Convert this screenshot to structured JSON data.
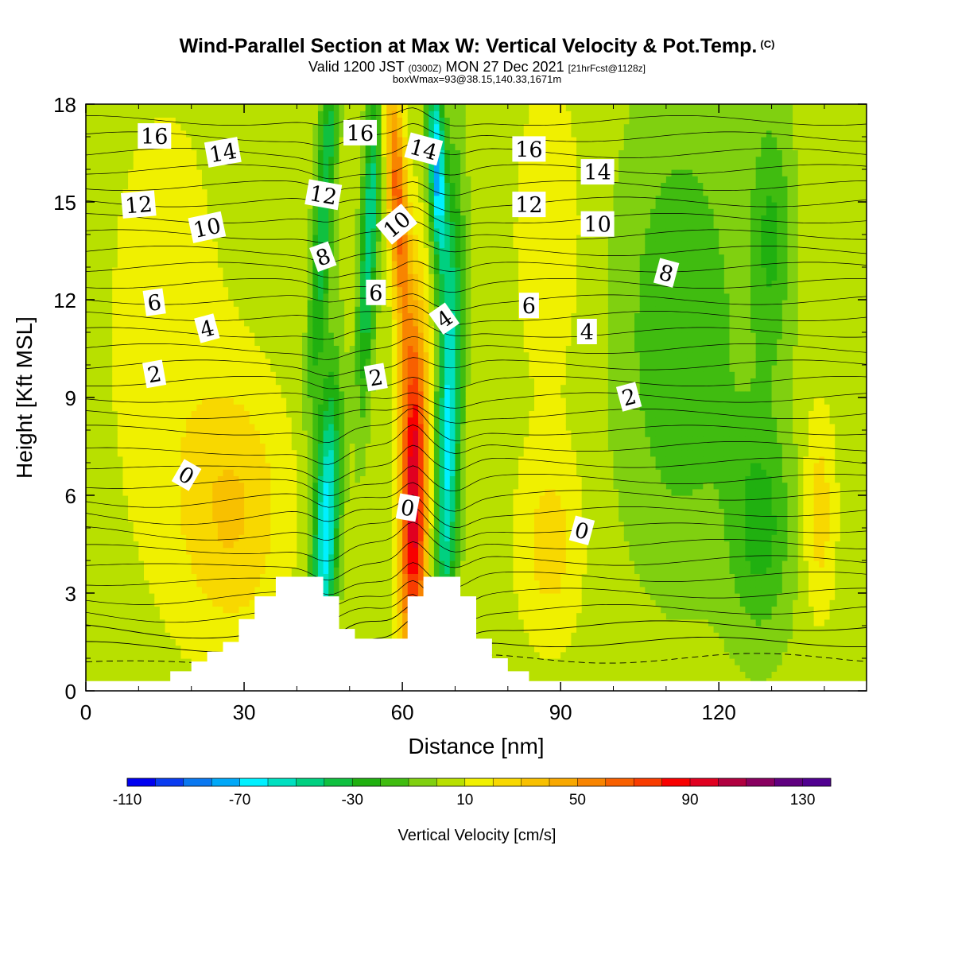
{
  "header": {
    "title": "Wind-Parallel Section at Max W: Vertical Velocity & Pot.Temp.",
    "title_mark": "(C)",
    "valid_prefix": "Valid 1200 JST",
    "valid_utc": "(0300Z)",
    "valid_date": "MON 27 Dec 2021",
    "forecast": "[21hrFcst@1128z]",
    "box_info": "boxWmax=93@38.15,140.33,1671m"
  },
  "chart_data": {
    "type": "heatmap",
    "xlabel": "Distance [nm]",
    "ylabel": "Height [Kft MSL]",
    "xlim": [
      0,
      148
    ],
    "ylim": [
      0,
      18
    ],
    "x_ticks": [
      "0",
      "30",
      "60",
      "90",
      "120"
    ],
    "x_tick_values": [
      0,
      30,
      60,
      90,
      120
    ],
    "y_ticks": [
      "0",
      "3",
      "6",
      "9",
      "12",
      "15",
      "18"
    ],
    "y_tick_values": [
      0,
      3,
      6,
      9,
      12,
      15,
      18
    ],
    "colorbar": {
      "title": "Vertical Velocity [cm/s]",
      "min": -110,
      "max": 140,
      "step": 10,
      "tick_labels": [
        "-110",
        "-70",
        "-30",
        "10",
        "50",
        "90",
        "130"
      ],
      "tick_values": [
        -110,
        -70,
        -30,
        10,
        50,
        90,
        130
      ],
      "colors": [
        "#0000f0",
        "#0a3cf0",
        "#0a78f0",
        "#00a8f8",
        "#00f0ff",
        "#00e0c0",
        "#00d080",
        "#10c040",
        "#20b010",
        "#40bc10",
        "#80d010",
        "#b8e000",
        "#f0f000",
        "#f8d800",
        "#f8c000",
        "#f8a800",
        "#f88400",
        "#f86000",
        "#f83c00",
        "#f80000",
        "#e00020",
        "#b00040",
        "#880060",
        "#600080",
        "#500090"
      ]
    },
    "terrain_profile": [
      [
        0,
        0.3
      ],
      [
        16,
        0.3
      ],
      [
        16,
        0.6
      ],
      [
        20,
        0.6
      ],
      [
        20,
        0.9
      ],
      [
        23,
        0.9
      ],
      [
        23,
        1.2
      ],
      [
        26,
        1.2
      ],
      [
        26,
        1.5
      ],
      [
        29,
        1.5
      ],
      [
        29,
        2.2
      ],
      [
        32,
        2.2
      ],
      [
        32,
        2.9
      ],
      [
        36,
        2.9
      ],
      [
        36,
        3.5
      ],
      [
        45,
        3.5
      ],
      [
        45,
        2.9
      ],
      [
        48,
        2.9
      ],
      [
        48,
        1.9
      ],
      [
        51,
        1.9
      ],
      [
        51,
        1.6
      ],
      [
        61,
        1.6
      ],
      [
        61,
        2.9
      ],
      [
        64,
        2.9
      ],
      [
        64,
        3.5
      ],
      [
        71,
        3.5
      ],
      [
        71,
        2.9
      ],
      [
        74,
        2.9
      ],
      [
        74,
        1.6
      ],
      [
        77,
        1.6
      ],
      [
        77,
        1.0
      ],
      [
        80,
        1.0
      ],
      [
        80,
        0.6
      ],
      [
        84,
        0.6
      ],
      [
        84,
        0.3
      ],
      [
        148,
        0.3
      ]
    ],
    "contour_labels": [
      {
        "text": "16",
        "x": 13,
        "y": 17.0,
        "angle": 0
      },
      {
        "text": "14",
        "x": 26,
        "y": 16.5,
        "angle": -10
      },
      {
        "text": "12",
        "x": 10,
        "y": 14.9,
        "angle": -5
      },
      {
        "text": "10",
        "x": 23,
        "y": 14.2,
        "angle": -12
      },
      {
        "text": "6",
        "x": 13,
        "y": 11.9,
        "angle": -8
      },
      {
        "text": "4",
        "x": 23,
        "y": 11.1,
        "angle": -15
      },
      {
        "text": "2",
        "x": 13,
        "y": 9.7,
        "angle": -10
      },
      {
        "text": "0",
        "x": 19,
        "y": 6.6,
        "angle": 30
      },
      {
        "text": "16",
        "x": 52,
        "y": 17.1,
        "angle": 0
      },
      {
        "text": "12",
        "x": 45,
        "y": 15.2,
        "angle": 10
      },
      {
        "text": "8",
        "x": 45,
        "y": 13.3,
        "angle": -20
      },
      {
        "text": "6",
        "x": 55,
        "y": 12.2,
        "angle": 0
      },
      {
        "text": "2",
        "x": 55,
        "y": 9.6,
        "angle": -10
      },
      {
        "text": "0",
        "x": 61,
        "y": 5.6,
        "angle": 10
      },
      {
        "text": "14",
        "x": 64,
        "y": 16.6,
        "angle": 15
      },
      {
        "text": "10",
        "x": 59,
        "y": 14.3,
        "angle": -40
      },
      {
        "text": "4",
        "x": 68,
        "y": 11.4,
        "angle": -35
      },
      {
        "text": "16",
        "x": 84,
        "y": 16.6,
        "angle": 0
      },
      {
        "text": "14",
        "x": 97,
        "y": 15.9,
        "angle": 0
      },
      {
        "text": "12",
        "x": 84,
        "y": 14.9,
        "angle": 0
      },
      {
        "text": "10",
        "x": 97,
        "y": 14.3,
        "angle": 0
      },
      {
        "text": "8",
        "x": 110,
        "y": 12.8,
        "angle": 15
      },
      {
        "text": "6",
        "x": 84,
        "y": 11.8,
        "angle": 0
      },
      {
        "text": "4",
        "x": 95,
        "y": 11.0,
        "angle": 0
      },
      {
        "text": "2",
        "x": 103,
        "y": 9.0,
        "angle": -15
      },
      {
        "text": "0",
        "x": 94,
        "y": 4.9,
        "angle": 15
      }
    ]
  }
}
